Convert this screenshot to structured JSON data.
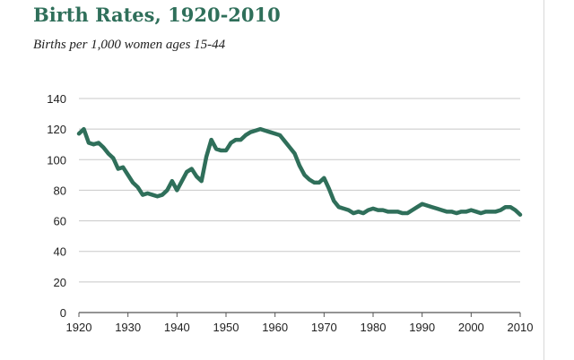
{
  "chart_data": {
    "type": "line",
    "title": "Birth Rates, 1920-2010",
    "subtitle": "Births per 1,000 women ages 15-44",
    "xlabel": "",
    "ylabel": "",
    "xlim": [
      1920,
      2010
    ],
    "ylim": [
      0,
      140
    ],
    "x_ticks": [
      1920,
      1930,
      1940,
      1950,
      1960,
      1970,
      1980,
      1990,
      2000,
      2010
    ],
    "y_ticks": [
      0,
      20,
      40,
      60,
      80,
      100,
      120,
      140
    ],
    "grid": true,
    "line_color": "#2f6f5a",
    "series": [
      {
        "name": "Birth rate",
        "x": [
          1920,
          1921,
          1922,
          1923,
          1924,
          1925,
          1926,
          1927,
          1928,
          1929,
          1930,
          1931,
          1932,
          1933,
          1934,
          1935,
          1936,
          1937,
          1938,
          1939,
          1940,
          1941,
          1942,
          1943,
          1944,
          1945,
          1946,
          1947,
          1948,
          1949,
          1950,
          1951,
          1952,
          1953,
          1954,
          1955,
          1956,
          1957,
          1958,
          1959,
          1960,
          1961,
          1962,
          1963,
          1964,
          1965,
          1966,
          1967,
          1968,
          1969,
          1970,
          1971,
          1972,
          1973,
          1974,
          1975,
          1976,
          1977,
          1978,
          1979,
          1980,
          1981,
          1982,
          1983,
          1984,
          1985,
          1986,
          1987,
          1988,
          1989,
          1990,
          1991,
          1992,
          1993,
          1994,
          1995,
          1996,
          1997,
          1998,
          1999,
          2000,
          2001,
          2002,
          2003,
          2004,
          2005,
          2006,
          2007,
          2008,
          2009,
          2010
        ],
        "values": [
          117,
          120,
          111,
          110,
          111,
          108,
          104,
          101,
          94,
          95,
          90,
          85,
          82,
          77,
          78,
          77,
          76,
          77,
          80,
          86,
          80,
          86,
          92,
          94,
          89,
          86,
          102,
          113,
          107,
          106,
          106,
          111,
          113,
          113,
          116,
          118,
          119,
          120,
          119,
          118,
          117,
          116,
          112,
          108,
          104,
          96,
          90,
          87,
          85,
          85,
          88,
          81,
          73,
          69,
          68,
          67,
          65,
          66,
          65,
          67,
          68,
          67,
          67,
          66,
          66,
          66,
          65,
          65,
          67,
          69,
          71,
          70,
          69,
          68,
          67,
          66,
          66,
          65,
          66,
          66,
          67,
          66,
          65,
          66,
          66,
          66,
          67,
          69,
          69,
          67,
          64
        ]
      }
    ]
  }
}
